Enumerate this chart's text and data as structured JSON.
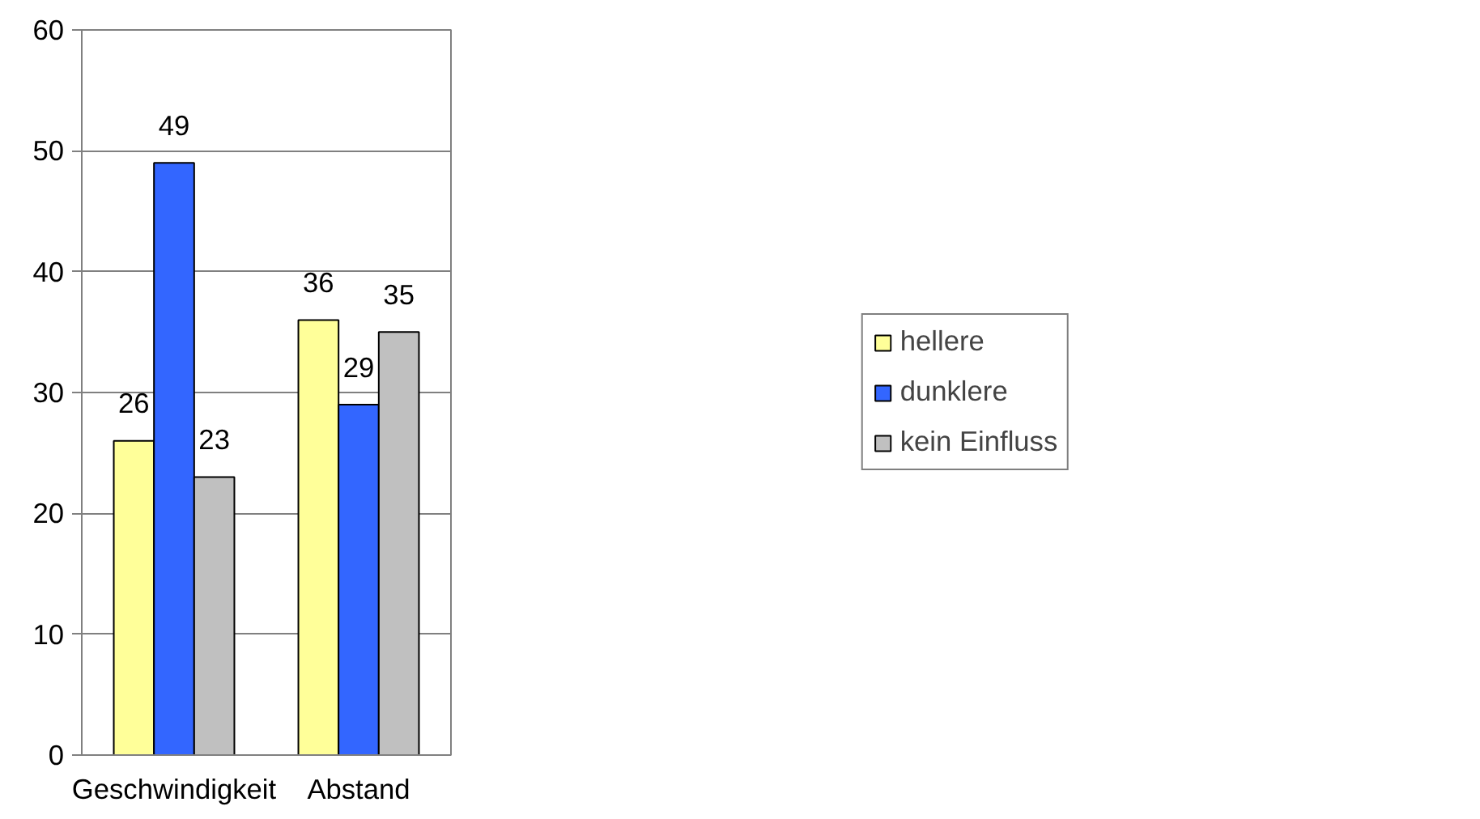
{
  "chart_data": {
    "type": "bar",
    "categories": [
      "Geschwindigkeit",
      "Abstand"
    ],
    "series": [
      {
        "name": "hellere",
        "color": "#ffff99",
        "values": [
          26,
          36
        ]
      },
      {
        "name": "dunklere",
        "color": "#3366ff",
        "values": [
          49,
          29
        ]
      },
      {
        "name": "kein Einfluss",
        "color": "#c0c0c0",
        "values": [
          23,
          35
        ]
      }
    ],
    "ylim": [
      0,
      60
    ],
    "yticks": [
      0,
      10,
      20,
      30,
      40,
      50,
      60
    ],
    "grid": "y",
    "legend": "right",
    "data_labels": true
  }
}
